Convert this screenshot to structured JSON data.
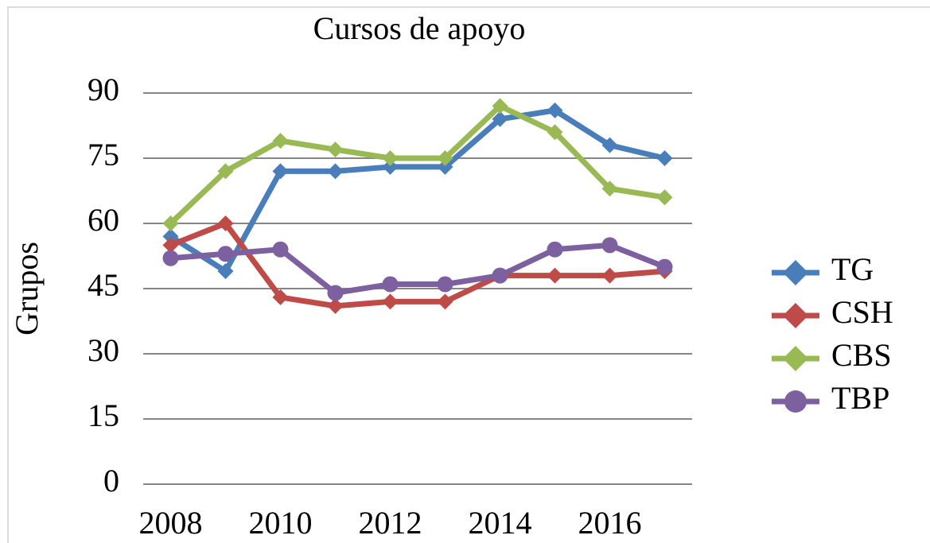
{
  "chart_data": {
    "type": "line",
    "title": "Cursos de apoyo",
    "y_label": "Grupos",
    "x": [
      2008,
      2009,
      2010,
      2011,
      2012,
      2013,
      2014,
      2015,
      2016,
      2017
    ],
    "xlim": [
      2007.5,
      2017.5
    ],
    "xticks": [
      2008,
      2010,
      2012,
      2014,
      2016
    ],
    "ylim": [
      0,
      90
    ],
    "yticks": [
      0,
      15,
      30,
      45,
      60,
      75,
      90
    ],
    "grid": true,
    "legend": "right",
    "series": [
      {
        "name": "TG",
        "color": "#4a7ebb",
        "marker": "diamond",
        "values": [
          57,
          49,
          72,
          72,
          73,
          73,
          84,
          86,
          78,
          75
        ]
      },
      {
        "name": "CSH",
        "color": "#be4b48",
        "marker": "diamond",
        "values": [
          55,
          60,
          43,
          41,
          42,
          42,
          48,
          48,
          48,
          49
        ]
      },
      {
        "name": "CBS",
        "color": "#98b954",
        "marker": "diamond",
        "values": [
          60,
          72,
          79,
          77,
          75,
          75,
          87,
          81,
          68,
          66
        ]
      },
      {
        "name": "TBP",
        "color": "#7d60a0",
        "marker": "circle",
        "values": [
          52,
          53,
          54,
          44,
          46,
          46,
          48,
          54,
          55,
          50
        ]
      }
    ]
  }
}
